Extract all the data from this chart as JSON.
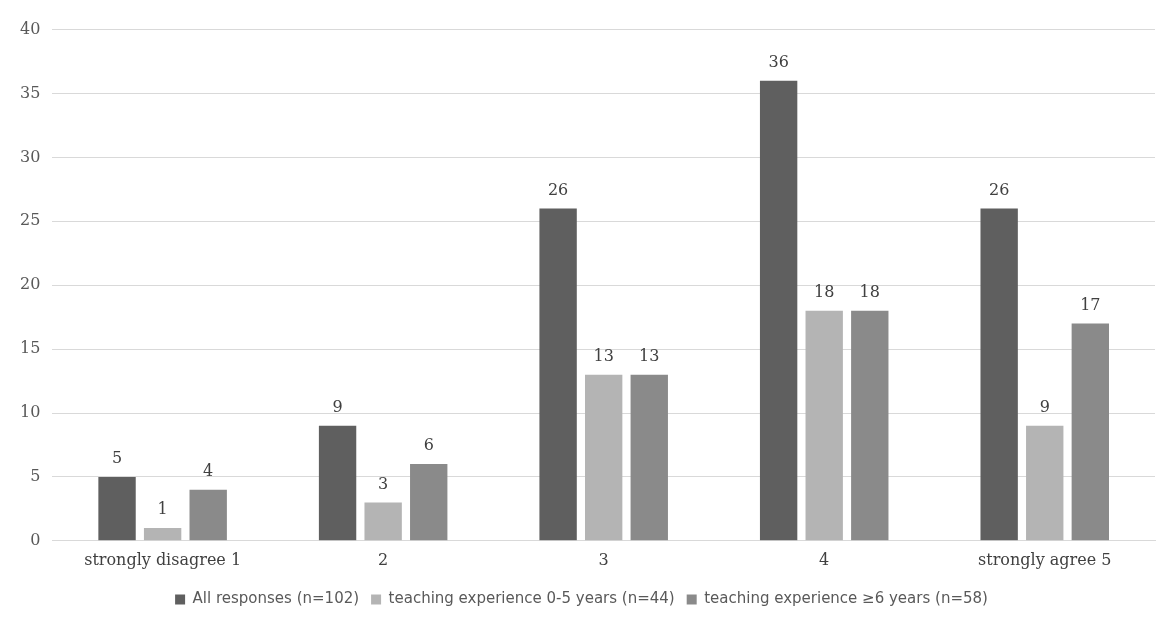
{
  "chart_data": {
    "type": "bar",
    "categories": [
      "strongly disagree 1",
      "2",
      "3",
      "4",
      "strongly agree 5"
    ],
    "series": [
      {
        "name": "All responses (n=102)",
        "color": "#5f5f5f",
        "values": [
          5,
          9,
          26,
          36,
          26
        ]
      },
      {
        "name": "teaching experience 0-5 years (n=44)",
        "color": "#b4b4b4",
        "values": [
          1,
          3,
          13,
          18,
          9
        ]
      },
      {
        "name": "teaching experience ≥6 years (n=58)",
        "color": "#8a8a8a",
        "values": [
          4,
          6,
          13,
          18,
          17
        ]
      }
    ],
    "ylim": [
      0,
      40
    ],
    "yticks": [
      0,
      5,
      10,
      15,
      20,
      25,
      30,
      35,
      40
    ],
    "grid": "y",
    "legend": "bottom",
    "data_labels": true
  }
}
